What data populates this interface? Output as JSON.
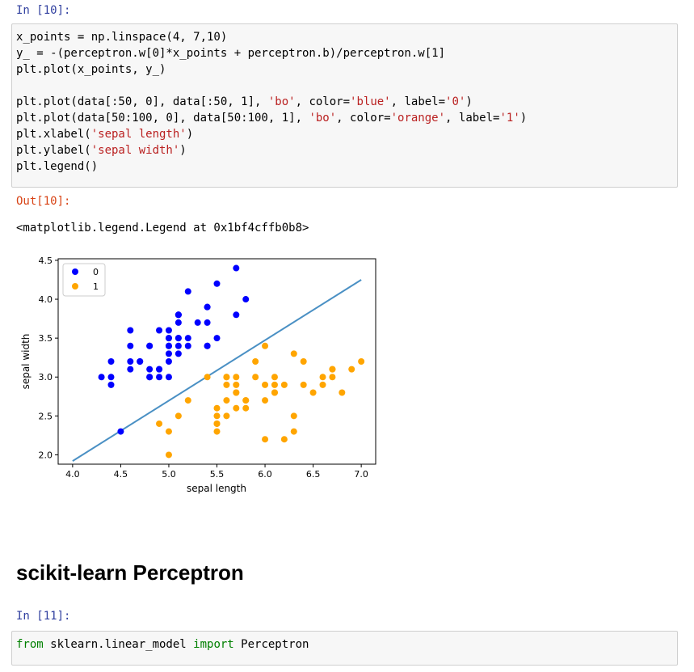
{
  "cells": {
    "in10_prompt": "In [10]:",
    "in10_code": {
      "l1": "x_points = np.linspace(4, 7,10)",
      "l2": "y_ = -(perceptron.w[0]*x_points + perceptron.b)/perceptron.w[1]",
      "l3": "plt.plot(x_points, y_)",
      "l5a": "plt.plot(data[:50, 0], data[:50, 1], ",
      "l5s1": "'bo'",
      "l5b": ", color=",
      "l5s2": "'blue'",
      "l5c": ", label=",
      "l5s3": "'0'",
      "l5d": ")",
      "l6a": "plt.plot(data[50:100, 0], data[50:100, 1], ",
      "l6s1": "'bo'",
      "l6b": ", color=",
      "l6s2": "'orange'",
      "l6c": ", label=",
      "l6s3": "'1'",
      "l6d": ")",
      "l7a": "plt.xlabel(",
      "l7s": "'sepal length'",
      "l7b": ")",
      "l8a": "plt.ylabel(",
      "l8s": "'sepal width'",
      "l8b": ")",
      "l9": "plt.legend()"
    },
    "out10_prompt": "Out[10]:",
    "out10_text": "<matplotlib.legend.Legend at 0x1bf4cffb0b8>",
    "section_heading": "scikit-learn Perceptron",
    "in11_prompt": "In [11]:",
    "in11_code": {
      "kw_from": "from",
      "module": " sklearn.linear_model ",
      "kw_import": "import",
      "name": " Perceptron"
    }
  },
  "colors": {
    "class0": "#0000ff",
    "class1": "#ffa500",
    "line": "#4a90c4"
  },
  "chart_data": {
    "type": "scatter",
    "xlabel": "sepal length",
    "ylabel": "sepal width",
    "xlim": [
      3.85,
      7.15
    ],
    "ylim": [
      1.88,
      4.52
    ],
    "xticks": [
      "4.0",
      "4.5",
      "5.0",
      "5.5",
      "6.0",
      "6.5",
      "7.0"
    ],
    "yticks": [
      "2.0",
      "2.5",
      "3.0",
      "3.5",
      "4.0",
      "4.5"
    ],
    "legend_position": "upper-left",
    "line": {
      "x": [
        4.0,
        7.0
      ],
      "y": [
        1.92,
        4.25
      ]
    },
    "series": [
      {
        "name": "0",
        "points": [
          [
            5.1,
            3.5
          ],
          [
            4.9,
            3.0
          ],
          [
            4.7,
            3.2
          ],
          [
            4.6,
            3.1
          ],
          [
            5.0,
            3.6
          ],
          [
            5.4,
            3.9
          ],
          [
            4.6,
            3.4
          ],
          [
            5.0,
            3.4
          ],
          [
            4.4,
            2.9
          ],
          [
            4.9,
            3.1
          ],
          [
            5.4,
            3.7
          ],
          [
            4.8,
            3.4
          ],
          [
            4.8,
            3.0
          ],
          [
            4.3,
            3.0
          ],
          [
            5.8,
            4.0
          ],
          [
            5.7,
            4.4
          ],
          [
            5.4,
            3.9
          ],
          [
            5.1,
            3.5
          ],
          [
            5.7,
            3.8
          ],
          [
            5.1,
            3.8
          ],
          [
            5.4,
            3.4
          ],
          [
            5.1,
            3.7
          ],
          [
            4.6,
            3.6
          ],
          [
            5.1,
            3.3
          ],
          [
            4.8,
            3.4
          ],
          [
            5.0,
            3.0
          ],
          [
            5.0,
            3.4
          ],
          [
            5.2,
            3.5
          ],
          [
            5.2,
            3.4
          ],
          [
            4.7,
            3.2
          ],
          [
            4.8,
            3.1
          ],
          [
            5.4,
            3.4
          ],
          [
            5.2,
            4.1
          ],
          [
            5.5,
            4.2
          ],
          [
            4.9,
            3.1
          ],
          [
            5.0,
            3.2
          ],
          [
            5.5,
            3.5
          ],
          [
            4.9,
            3.6
          ],
          [
            4.4,
            3.0
          ],
          [
            5.1,
            3.4
          ],
          [
            5.0,
            3.5
          ],
          [
            4.5,
            2.3
          ],
          [
            4.4,
            3.2
          ],
          [
            5.0,
            3.5
          ],
          [
            5.1,
            3.8
          ],
          [
            4.8,
            3.0
          ],
          [
            5.1,
            3.8
          ],
          [
            4.6,
            3.2
          ],
          [
            5.3,
            3.7
          ],
          [
            5.0,
            3.3
          ]
        ]
      },
      {
        "name": "1",
        "points": [
          [
            7.0,
            3.2
          ],
          [
            6.4,
            3.2
          ],
          [
            6.9,
            3.1
          ],
          [
            5.5,
            2.3
          ],
          [
            6.5,
            2.8
          ],
          [
            5.7,
            2.8
          ],
          [
            6.3,
            3.3
          ],
          [
            4.9,
            2.4
          ],
          [
            6.6,
            2.9
          ],
          [
            5.2,
            2.7
          ],
          [
            5.0,
            2.0
          ],
          [
            5.9,
            3.0
          ],
          [
            6.0,
            2.2
          ],
          [
            6.1,
            2.9
          ],
          [
            5.6,
            2.9
          ],
          [
            6.7,
            3.1
          ],
          [
            5.6,
            3.0
          ],
          [
            5.8,
            2.7
          ],
          [
            6.2,
            2.2
          ],
          [
            5.6,
            2.5
          ],
          [
            5.9,
            3.2
          ],
          [
            6.1,
            2.8
          ],
          [
            6.3,
            2.5
          ],
          [
            6.1,
            2.8
          ],
          [
            6.4,
            2.9
          ],
          [
            6.6,
            3.0
          ],
          [
            6.8,
            2.8
          ],
          [
            6.7,
            3.0
          ],
          [
            6.0,
            2.9
          ],
          [
            5.7,
            2.6
          ],
          [
            5.5,
            2.4
          ],
          [
            5.5,
            2.4
          ],
          [
            5.8,
            2.7
          ],
          [
            6.0,
            2.7
          ],
          [
            5.4,
            3.0
          ],
          [
            6.0,
            3.4
          ],
          [
            6.7,
            3.1
          ],
          [
            6.3,
            2.3
          ],
          [
            5.6,
            3.0
          ],
          [
            5.5,
            2.5
          ],
          [
            5.5,
            2.6
          ],
          [
            6.1,
            3.0
          ],
          [
            5.8,
            2.6
          ],
          [
            5.0,
            2.3
          ],
          [
            5.6,
            2.7
          ],
          [
            5.7,
            3.0
          ],
          [
            5.7,
            2.9
          ],
          [
            6.2,
            2.9
          ],
          [
            5.1,
            2.5
          ],
          [
            5.7,
            2.8
          ]
        ]
      }
    ]
  }
}
